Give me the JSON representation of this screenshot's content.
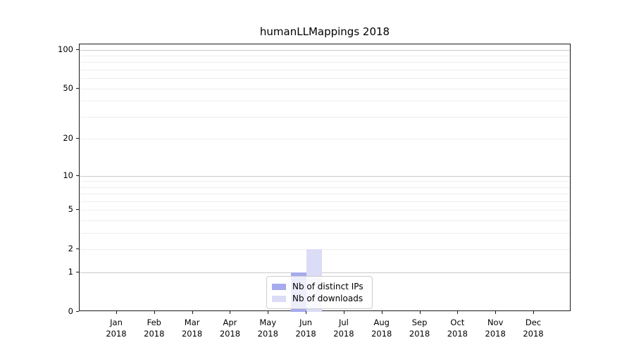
{
  "chart_data": {
    "type": "bar",
    "title": "humanLLMappings 2018",
    "categories": [
      "Jan",
      "Feb",
      "Mar",
      "Apr",
      "May",
      "Jun",
      "Jul",
      "Aug",
      "Sep",
      "Oct",
      "Nov",
      "Dec"
    ],
    "year": "2018",
    "series": [
      {
        "name": "Nb of distinct IPs",
        "color": "#a6aaee",
        "values": [
          0,
          0,
          0,
          0,
          0,
          1,
          0,
          0,
          0,
          0,
          0,
          0
        ]
      },
      {
        "name": "Nb of downloads",
        "color": "#dbdcf6",
        "values": [
          0,
          0,
          0,
          0,
          0,
          2,
          0,
          0,
          0,
          0,
          0,
          0
        ]
      }
    ],
    "y_axis": {
      "scale": "log1p",
      "max": 110,
      "ticks": [
        {
          "v": 100,
          "label": "100"
        },
        {
          "v": 50,
          "label": "50"
        },
        {
          "v": 20,
          "label": "20"
        },
        {
          "v": 10,
          "label": "10"
        },
        {
          "v": 5,
          "label": "5"
        },
        {
          "v": 2,
          "label": "2"
        },
        {
          "v": 1,
          "label": "1"
        },
        {
          "v": 0,
          "label": "0"
        }
      ],
      "major_grid": [
        100,
        10,
        1
      ],
      "minor_grid": [
        90,
        80,
        70,
        60,
        50,
        40,
        30,
        20,
        9,
        8,
        7,
        6,
        5,
        4,
        3,
        2
      ]
    },
    "legend": {
      "position": "lower-center"
    },
    "grid": true
  }
}
